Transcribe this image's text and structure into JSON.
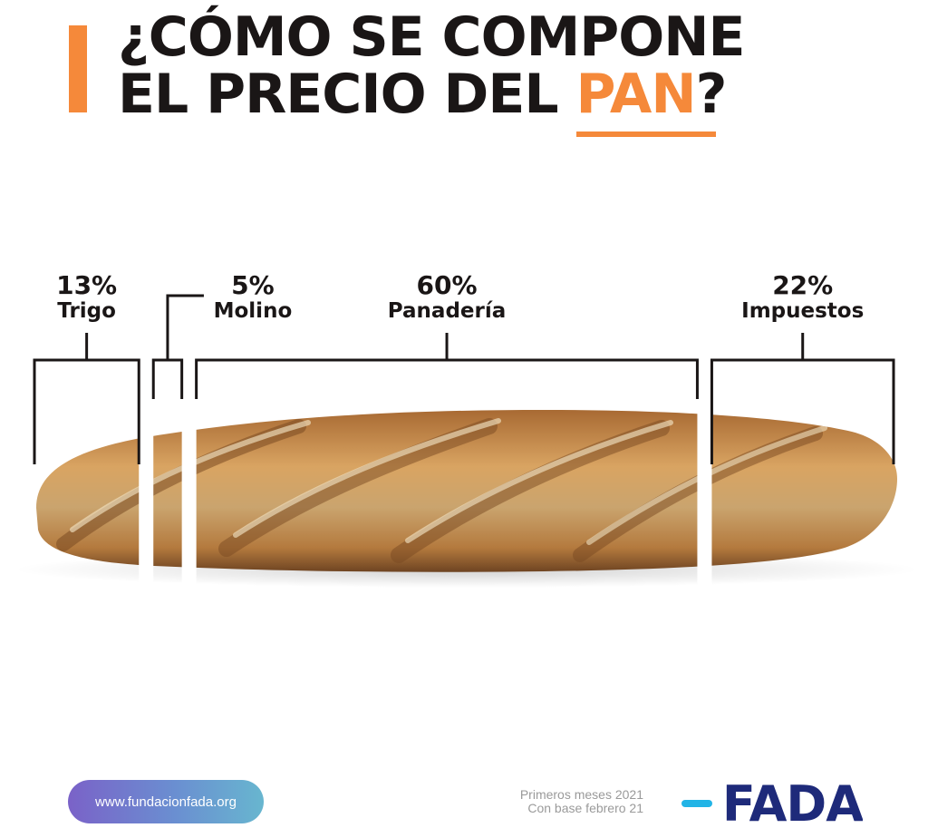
{
  "header": {
    "title_line1": "¿CÓMO SE COMPONE",
    "title_line2_pre": "EL PRECIO DEL ",
    "title_line2_highlight": "PAN",
    "title_line2_post": "?"
  },
  "chart_data": {
    "type": "bar",
    "subtype": "stacked-horizontal-single",
    "title": "¿CÓMO SE COMPONE EL PRECIO DEL PAN?",
    "categories": [
      "Trigo",
      "Molino",
      "Panadería",
      "Impuestos"
    ],
    "values": [
      13,
      5,
      60,
      22
    ],
    "value_labels": [
      "13%",
      "5%",
      "60%",
      "22%"
    ],
    "unit": "%",
    "total": 100,
    "legend": "none",
    "grid": false
  },
  "footer": {
    "url": "www.fundacionfada.org",
    "note_line1": "Primeros meses 2021",
    "note_line2": "Con base febrero 21",
    "logo_text": "FADA"
  },
  "colors": {
    "accent": "#f5893a",
    "text": "#1a1616",
    "logo_navy": "#1e2a7a",
    "logo_cyan": "#22b4e6",
    "note_gray": "#9a9a9a"
  }
}
